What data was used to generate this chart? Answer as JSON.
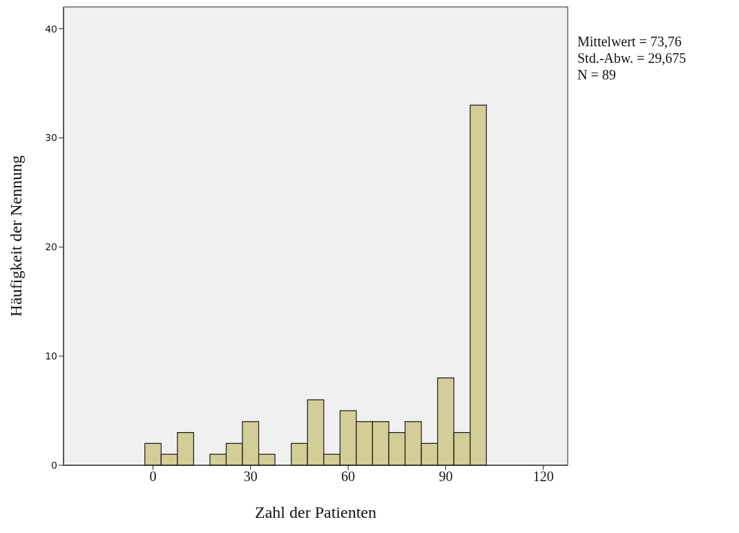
{
  "chart_data": {
    "type": "histogram",
    "xlabel": "Zahl der Patienten",
    "ylabel": "Häufigkeit der Nennung",
    "bins": [
      -2.5,
      2.5,
      7.5,
      12.5,
      17.5,
      22.5,
      27.5,
      32.5,
      37.5,
      42.5,
      47.5,
      52.5,
      57.5,
      62.5,
      67.5,
      72.5,
      77.5,
      82.5,
      87.5,
      92.5,
      97.5,
      102.5
    ],
    "values": [
      2,
      1,
      3,
      0,
      1,
      2,
      4,
      1,
      0,
      2,
      6,
      1,
      5,
      4,
      4,
      3,
      4,
      2,
      8,
      3,
      33
    ],
    "color": "#d3ce97",
    "xlim": [
      -27.5,
      127.5
    ],
    "xticks": [
      0,
      30,
      60,
      90,
      120
    ],
    "ylim": [
      0,
      42
    ],
    "yticks": [
      0,
      10,
      20,
      30,
      40
    ],
    "annotations": [
      "Mittelwert = 73,76",
      "Std.-Abw. = 29,675",
      "N = 89"
    ]
  }
}
